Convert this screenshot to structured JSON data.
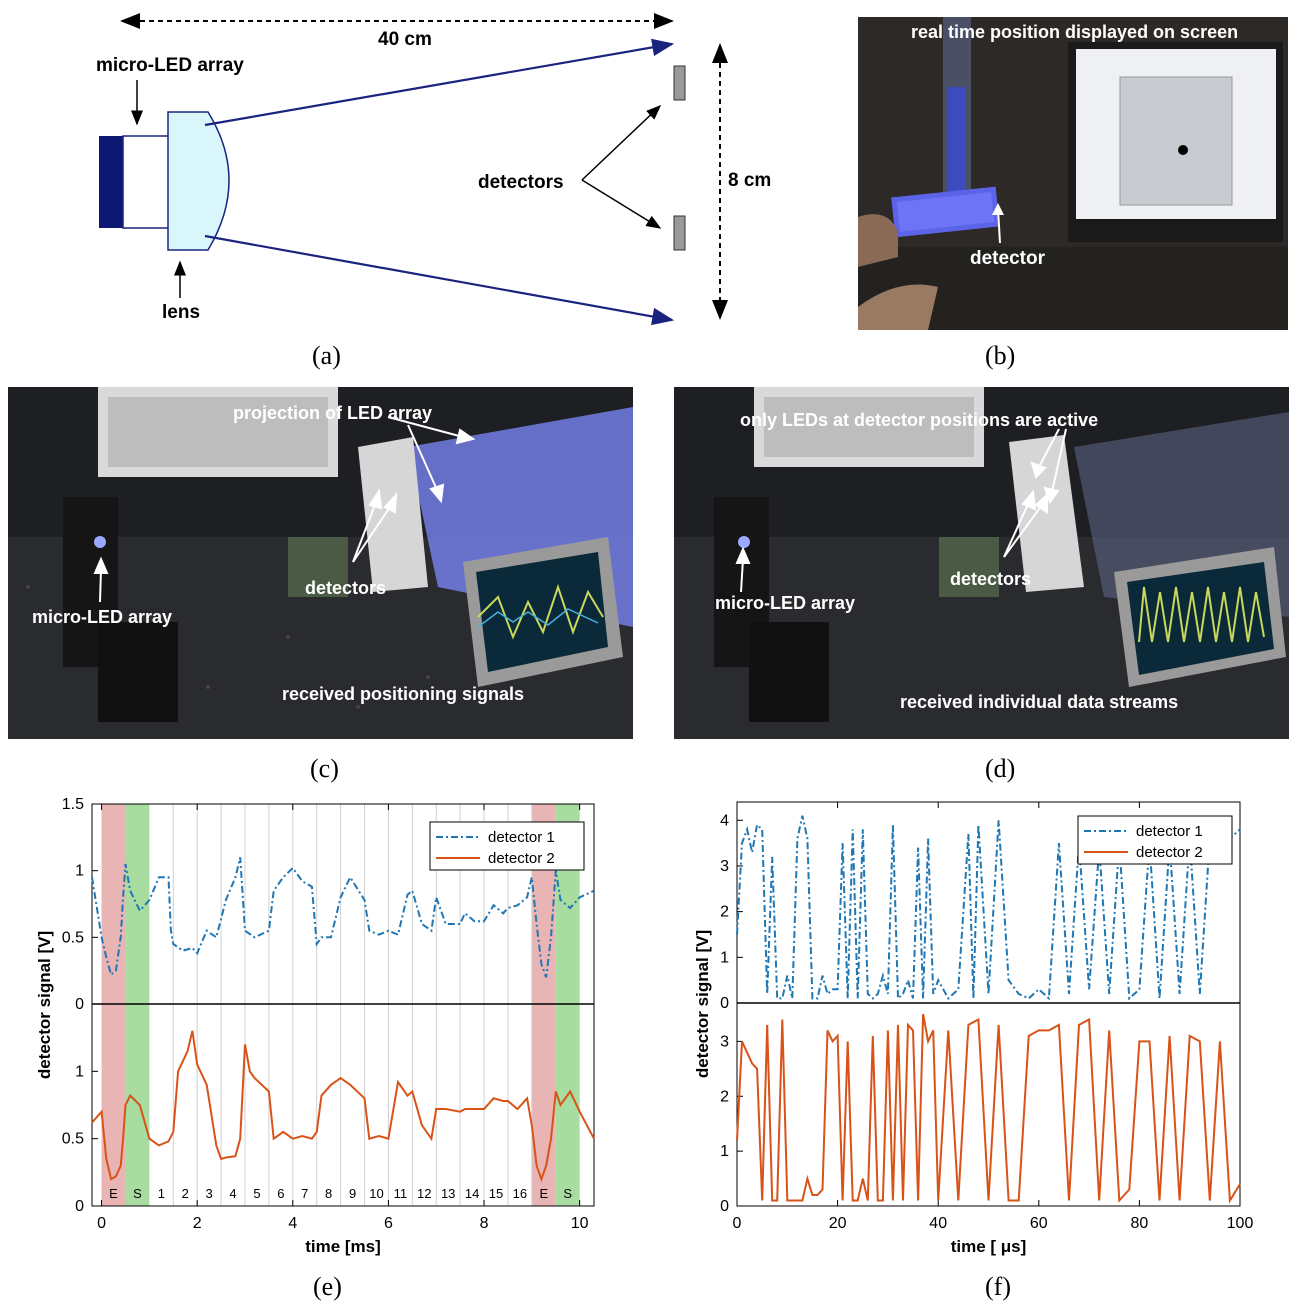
{
  "panel_a": {
    "distance_label": "40 cm",
    "array_label": "micro-LED array",
    "lens_label": "lens",
    "detectors_label": "detectors",
    "height_label": "8 cm",
    "caption": "(a)"
  },
  "panel_b": {
    "top_label": "real time position displayed on screen",
    "detector_label": "detector",
    "caption": "(b)"
  },
  "panel_c": {
    "projection_label": "projection of LED array",
    "detectors_label": "detectors",
    "array_label": "micro-LED array",
    "signals_label": "received positioning signals",
    "caption": "(c)"
  },
  "panel_d": {
    "active_label": "only LEDs at detector positions are active",
    "detectors_label": "detectors",
    "array_label": "micro-LED array",
    "streams_label": "received individual data streams",
    "caption": "(d)"
  },
  "colors": {
    "detector1": "#1f77b4",
    "detector2": "#d95319",
    "E_band": "#e8b4b4",
    "S_band": "#a8dca0",
    "beam": "#1a237e"
  },
  "chart_data": [
    {
      "type": "line",
      "panel": "(e)",
      "xlabel": "time [ms]",
      "ylabel": "detector signal [V]",
      "xlim": [
        -0.2,
        10.3
      ],
      "xticks": [
        0,
        2,
        4,
        6,
        8,
        10
      ],
      "top_yticks": [
        "0",
        "0.5",
        "1",
        "1.5"
      ],
      "bottom_yticks": [
        "0",
        "0.5",
        "1"
      ],
      "slot_labels": [
        "E",
        "S",
        "1",
        "2",
        "3",
        "4",
        "5",
        "6",
        "7",
        "8",
        "9",
        "10",
        "11",
        "12",
        "13",
        "14",
        "15",
        "16",
        "E",
        "S"
      ],
      "legend": [
        "detector 1",
        "detector 2"
      ],
      "legend_position": "top-right",
      "series": [
        {
          "name": "detector 1",
          "x": [
            -0.2,
            0,
            0.1,
            0.2,
            0.3,
            0.4,
            0.45,
            0.5,
            0.6,
            0.8,
            1,
            1.2,
            1.4,
            1.45,
            1.5,
            1.7,
            1.9,
            2,
            2.2,
            2.4,
            2.6,
            2.8,
            2.9,
            3,
            3.2,
            3.5,
            3.6,
            3.8,
            4,
            4.2,
            4.4,
            4.5,
            4.6,
            4.8,
            5,
            5.2,
            5.5,
            5.6,
            5.8,
            6,
            6.2,
            6.4,
            6.5,
            6.7,
            6.9,
            7,
            7.2,
            7.5,
            7.6,
            7.8,
            8,
            8.2,
            8.4,
            8.5,
            8.7,
            8.9,
            9.0,
            9.1,
            9.2,
            9.3,
            9.4,
            9.5,
            9.6,
            9.8,
            10,
            10.3
          ],
          "y": [
            0.95,
            0.5,
            0.35,
            0.22,
            0.25,
            0.5,
            0.8,
            1.05,
            0.85,
            0.7,
            0.78,
            0.95,
            0.95,
            0.55,
            0.45,
            0.4,
            0.42,
            0.38,
            0.55,
            0.5,
            0.78,
            0.95,
            1.1,
            0.55,
            0.5,
            0.55,
            0.85,
            0.95,
            1.02,
            0.92,
            0.88,
            0.45,
            0.5,
            0.5,
            0.8,
            0.95,
            0.78,
            0.55,
            0.52,
            0.55,
            0.52,
            0.82,
            0.85,
            0.6,
            0.55,
            0.8,
            0.6,
            0.6,
            0.68,
            0.62,
            0.62,
            0.74,
            0.68,
            0.72,
            0.74,
            0.8,
            0.95,
            0.6,
            0.3,
            0.2,
            0.5,
            1.0,
            0.78,
            0.72,
            0.8,
            0.85
          ]
        },
        {
          "name": "detector 2",
          "x": [
            -0.2,
            0,
            0.1,
            0.2,
            0.3,
            0.4,
            0.45,
            0.5,
            0.6,
            0.8,
            1,
            1.2,
            1.4,
            1.5,
            1.6,
            1.8,
            1.9,
            2,
            2.2,
            2.4,
            2.5,
            2.6,
            2.8,
            2.9,
            3,
            3.1,
            3.2,
            3.5,
            3.6,
            3.8,
            4,
            4.2,
            4.4,
            4.5,
            4.6,
            4.8,
            5,
            5.2,
            5.5,
            5.6,
            5.8,
            6,
            6.2,
            6.4,
            6.5,
            6.7,
            6.9,
            7,
            7.2,
            7.5,
            7.6,
            7.8,
            8,
            8.2,
            8.4,
            8.5,
            8.7,
            8.9,
            9.0,
            9.1,
            9.2,
            9.3,
            9.4,
            9.5,
            9.6,
            9.8,
            10,
            10.3
          ],
          "y": [
            0.62,
            0.7,
            0.35,
            0.2,
            0.22,
            0.3,
            0.5,
            0.75,
            0.82,
            0.75,
            0.5,
            0.45,
            0.48,
            0.55,
            1.0,
            1.15,
            1.3,
            1.05,
            0.9,
            0.45,
            0.35,
            0.36,
            0.37,
            0.5,
            1.2,
            1.0,
            0.95,
            0.85,
            0.5,
            0.55,
            0.5,
            0.52,
            0.5,
            0.55,
            0.82,
            0.9,
            0.95,
            0.9,
            0.8,
            0.5,
            0.52,
            0.5,
            0.92,
            0.82,
            0.85,
            0.6,
            0.5,
            0.72,
            0.72,
            0.7,
            0.72,
            0.72,
            0.72,
            0.8,
            0.78,
            0.78,
            0.72,
            0.8,
            0.6,
            0.3,
            0.2,
            0.3,
            0.5,
            0.85,
            0.75,
            0.85,
            0.7,
            0.5
          ]
        }
      ]
    },
    {
      "type": "line",
      "panel": "(f)",
      "xlabel": "time [ μs]",
      "ylabel": "detector signal [V]",
      "xlim": [
        0,
        100
      ],
      "xticks": [
        0,
        20,
        40,
        60,
        80,
        100
      ],
      "top_yticks": [
        "0",
        "1",
        "2",
        "3",
        "4"
      ],
      "bottom_yticks": [
        "0",
        "1",
        "2",
        "3"
      ],
      "legend": [
        "detector 1",
        "detector 2"
      ],
      "legend_position": "top-right",
      "series": [
        {
          "name": "detector 1",
          "x": [
            0,
            1,
            2,
            3,
            4,
            5,
            6,
            7,
            8,
            9,
            10,
            11,
            12,
            13,
            14,
            15,
            16,
            17,
            18,
            19,
            20,
            21,
            22,
            23,
            24,
            25,
            26,
            27,
            28,
            29,
            30,
            31,
            32,
            33,
            34,
            35,
            36,
            37,
            38,
            39,
            40,
            42,
            44,
            46,
            47,
            48,
            50,
            52,
            54,
            56,
            58,
            60,
            62,
            64,
            66,
            68,
            70,
            72,
            74,
            76,
            78,
            80,
            82,
            84,
            86,
            88,
            90,
            92,
            94,
            96,
            98,
            100
          ],
          "y": [
            1.5,
            3.5,
            3.8,
            3.3,
            3.9,
            3.8,
            0.2,
            3.2,
            0.1,
            0.1,
            0.6,
            0.1,
            3.6,
            4.1,
            3.6,
            0.1,
            0.1,
            0.6,
            0.2,
            0.3,
            0.3,
            3.5,
            0.1,
            3.8,
            0.1,
            3.8,
            0.2,
            0.1,
            0.2,
            0.6,
            0.2,
            3.9,
            0.1,
            0.2,
            0.5,
            0.1,
            3.4,
            0.1,
            3.6,
            0.2,
            0.5,
            0.1,
            0.3,
            3.7,
            0.1,
            3.9,
            0.2,
            4.0,
            0.5,
            0.2,
            0.1,
            0.3,
            0.1,
            3.5,
            0.2,
            3.5,
            0.3,
            3.4,
            0.2,
            3.5,
            0.1,
            0.3,
            3.5,
            0.1,
            3.5,
            0.2,
            3.6,
            0.2,
            3.6,
            3.4,
            3.6,
            3.8
          ]
        },
        {
          "name": "detector 2",
          "x": [
            0,
            1,
            2,
            3,
            4,
            5,
            6,
            7,
            8,
            9,
            10,
            11,
            12,
            13,
            14,
            15,
            16,
            17,
            18,
            19,
            20,
            21,
            22,
            23,
            24,
            25,
            26,
            27,
            28,
            29,
            30,
            31,
            32,
            33,
            34,
            35,
            36,
            37,
            38,
            39,
            40,
            42,
            44,
            46,
            48,
            50,
            52,
            54,
            56,
            58,
            60,
            62,
            64,
            66,
            68,
            70,
            72,
            74,
            76,
            78,
            80,
            82,
            84,
            86,
            88,
            90,
            92,
            94,
            96,
            98,
            100
          ],
          "y": [
            1.2,
            3.0,
            2.8,
            2.6,
            2.5,
            0.1,
            3.3,
            0.1,
            0.1,
            3.4,
            0.1,
            0.1,
            0.1,
            0.1,
            0.5,
            0.2,
            0.2,
            0.3,
            3.2,
            3.0,
            3.1,
            0.1,
            3.0,
            0.1,
            0.1,
            0.5,
            0.1,
            3.1,
            0.1,
            0.1,
            3.2,
            0.1,
            3.3,
            0.1,
            3.3,
            3.2,
            0.1,
            3.5,
            3.0,
            3.2,
            0.1,
            3.2,
            0.1,
            3.3,
            3.4,
            0.1,
            3.3,
            0.1,
            0.1,
            3.1,
            3.2,
            3.2,
            3.3,
            0.1,
            3.3,
            3.4,
            0.1,
            3.2,
            0.1,
            0.3,
            3.0,
            3.0,
            0.1,
            3.1,
            0.1,
            3.1,
            3.0,
            0.1,
            3.0,
            0.1,
            0.4
          ]
        }
      ]
    }
  ]
}
